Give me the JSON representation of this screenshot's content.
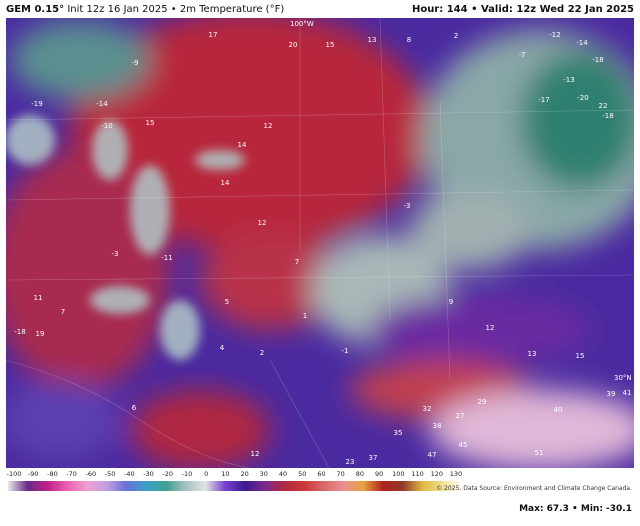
{
  "header": {
    "model": "GEM 0.15°",
    "run": "Init 12z 16 Jan 2025 • 2m Temperature (°F)",
    "valid": "Hour: 144 • Valid: 12z Wed 22 Jan 2025"
  },
  "map": {
    "labels": [
      "17",
      "20",
      "15",
      "13",
      "8",
      "2",
      "-12",
      "-14",
      "-18",
      "-7",
      "-13",
      "-18",
      "-17",
      "-20",
      "22",
      "12",
      "14",
      "14",
      "12",
      "7",
      "5",
      "4",
      "2",
      "1",
      "-1",
      "-3",
      "9",
      "12",
      "13",
      "15",
      "39",
      "41",
      "40",
      "29",
      "27",
      "32",
      "35",
      "38",
      "45",
      "47",
      "51",
      "37",
      "23",
      "12",
      "6",
      "19",
      "-18",
      "7",
      "11",
      "-9",
      "-14",
      "-19",
      "-10",
      "15",
      "-3",
      "-11"
    ],
    "graticule": [
      "100°W",
      "30°N"
    ]
  },
  "colorbar": {
    "ticks": [
      -100,
      -90,
      -80,
      -70,
      -60,
      -50,
      -40,
      -30,
      -20,
      -10,
      0,
      10,
      20,
      30,
      40,
      50,
      60,
      70,
      80,
      90,
      100,
      110,
      120,
      130
    ]
  },
  "footer": {
    "copyright": "© 2025. Data Source: Environment and Climate Change Canada.",
    "maxmin": "Max: 67.3 • Min: -30.1"
  }
}
